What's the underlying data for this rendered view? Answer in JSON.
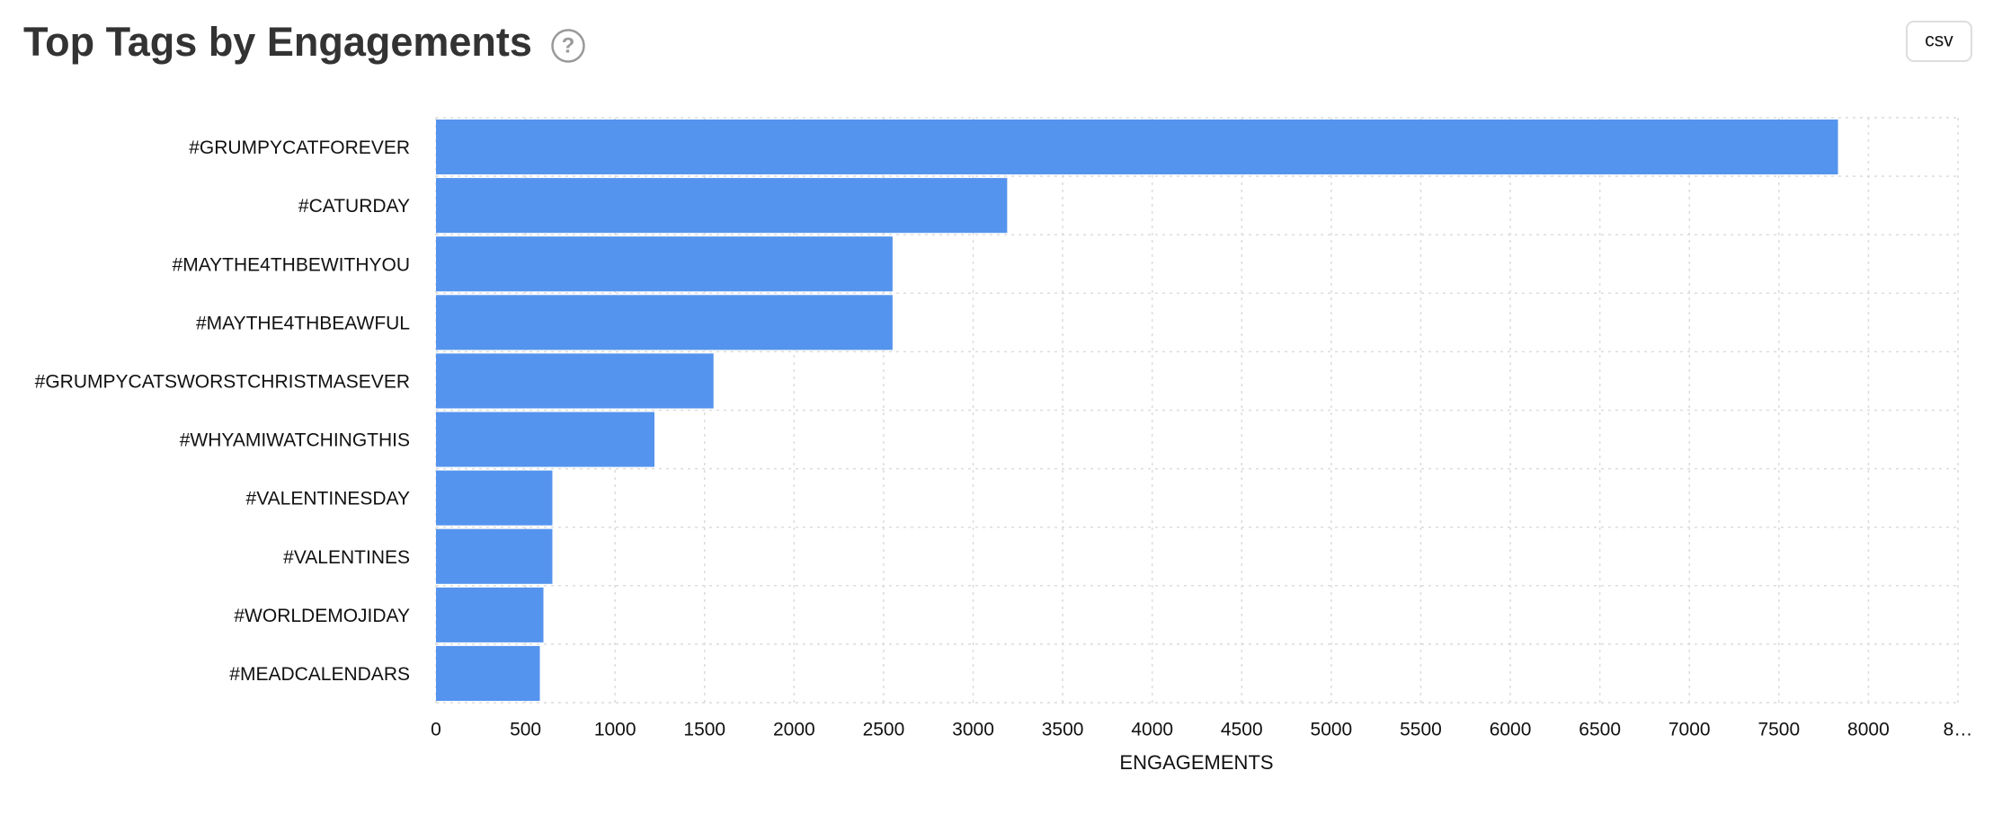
{
  "chart_data": {
    "type": "bar",
    "orientation": "horizontal",
    "title": "Top Tags by Engagements",
    "x_label": "ENGAGEMENTS",
    "categories": [
      "#GRUMPYCATFOREVER",
      "#CATURDAY",
      "#MAYTHE4THBEWITHYOU",
      "#MAYTHE4THBEAWFUL",
      "#GRUMPYCATSWORSTCHRISTMASEVER",
      "#WHYAMIWATCHINGTHIS",
      "#VALENTINESDAY",
      "#VALENTINES",
      "#WORLDEMOJIDAY",
      "#MEADCALENDARS"
    ],
    "values": [
      7830,
      3190,
      2550,
      2550,
      1550,
      1220,
      650,
      650,
      600,
      580
    ],
    "color": "#5594ee",
    "xlim": [
      0,
      8500
    ],
    "xticks": [
      0,
      500,
      1000,
      1500,
      2000,
      2500,
      3000,
      3500,
      4000,
      4500,
      5000,
      5500,
      6000,
      6500,
      7000,
      7500,
      8000,
      {
        "value": 8500,
        "label": "8…"
      }
    ],
    "grid": true
  },
  "help_icon": "?",
  "csv_button": "csv"
}
